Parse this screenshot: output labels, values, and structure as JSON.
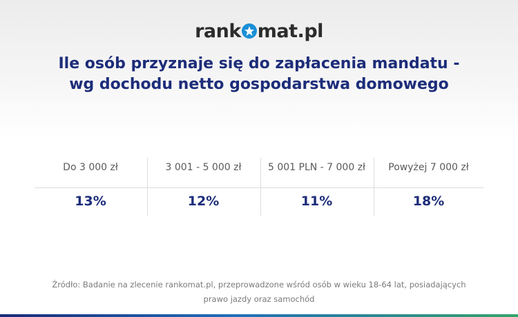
{
  "brand": {
    "prefix": "rank",
    "suffix": "mat.pl"
  },
  "title_lines": [
    "Ile osób przyznaje się do zapłacenia mandatu -",
    "wg dochodu netto gospodarstwa domowego"
  ],
  "chart_data": {
    "type": "table",
    "categories": [
      "Do 3 000 zł",
      "3 001 - 5 000 zł",
      "5 001 PLN - 7 000 zł",
      "Powyżej 7 000 zł"
    ],
    "values": [
      13,
      12,
      11,
      18
    ],
    "value_labels": [
      "13%",
      "12%",
      "11%",
      "18%"
    ],
    "unit": "%"
  },
  "source_lines": [
    "Źródło: Badanie na zlecenie rankomat.pl, przeprowadzone wśród osób w wieku 18-64 lat, posiadających",
    "prawo jazdy oraz samochód"
  ],
  "colors": {
    "title": "#1d2d7a",
    "value": "#1d2d7a",
    "brand_accent": "#1b8fd6",
    "bar_gradient": [
      "#1b2a78",
      "#1f6fb8",
      "#34a36b"
    ]
  }
}
